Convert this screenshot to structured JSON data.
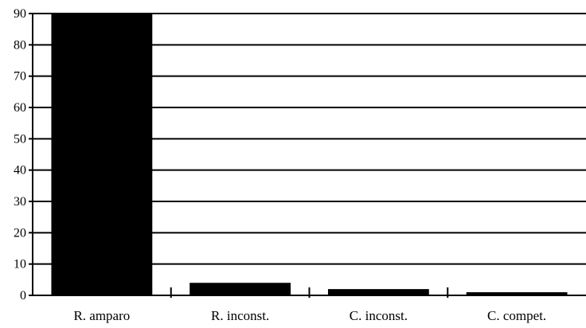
{
  "chart_data": {
    "type": "bar",
    "title": "",
    "xlabel": "",
    "ylabel": "",
    "categories": [
      "R. amparo",
      "R. inconst.",
      "C. inconst.",
      "C. compet."
    ],
    "values": [
      90,
      4,
      2,
      1
    ],
    "ylim": [
      0,
      90
    ],
    "yticks": [
      0,
      10,
      20,
      30,
      40,
      50,
      60,
      70,
      80,
      90
    ],
    "grid": true,
    "legend": "none",
    "colors": {
      "bar": "#000000",
      "grid": "#000000",
      "background": "#ffffff"
    }
  }
}
